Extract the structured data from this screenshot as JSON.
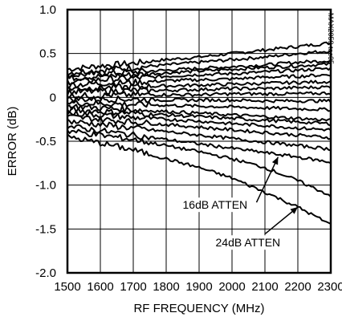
{
  "chart_data": {
    "type": "line",
    "xlabel": "RF FREQUENCY (MHz)",
    "ylabel": "ERROR (dB)",
    "xlim": [
      1500,
      2300
    ],
    "ylim": [
      -2.0,
      1.0
    ],
    "x_ticks": [
      "1500",
      "1600",
      "1700",
      "1800",
      "1900",
      "2000",
      "2100",
      "2200",
      "2300"
    ],
    "y_ticks": [
      "1.0",
      "0.5",
      "0",
      "-0.5",
      "-1.0",
      "-1.5",
      "-2.0"
    ],
    "grid": true,
    "figure_id": "MAX2059 toc05",
    "x": [
      1500,
      1600,
      1700,
      1800,
      1900,
      2000,
      2100,
      2200,
      2300
    ],
    "series": [
      {
        "values": [
          0.32,
          0.36,
          0.39,
          0.43,
          0.46,
          0.5,
          0.54,
          0.58,
          0.62
        ]
      },
      {
        "values": [
          0.28,
          0.31,
          0.34,
          0.37,
          0.4,
          0.43,
          0.46,
          0.5,
          0.53
        ]
      },
      {
        "values": [
          0.25,
          0.27,
          0.29,
          0.31,
          0.33,
          0.35,
          0.37,
          0.4,
          0.42
        ]
      },
      {
        "values": [
          0.22,
          0.24,
          0.26,
          0.28,
          0.3,
          0.32,
          0.34,
          0.36,
          0.38
        ]
      },
      {
        "values": [
          0.18,
          0.2,
          0.22,
          0.24,
          0.26,
          0.27,
          0.29,
          0.31,
          0.33
        ]
      },
      {
        "values": [
          0.14,
          0.16,
          0.17,
          0.19,
          0.2,
          0.21,
          0.23,
          0.24,
          0.26
        ]
      },
      {
        "values": [
          0.1,
          0.11,
          0.12,
          0.13,
          0.14,
          0.15,
          0.16,
          0.17,
          0.18
        ]
      },
      {
        "values": [
          0.06,
          0.07,
          0.08,
          0.08,
          0.09,
          0.1,
          0.1,
          0.11,
          0.12
        ]
      },
      {
        "values": [
          0.02,
          0.02,
          0.03,
          0.03,
          0.03,
          0.04,
          0.04,
          0.04,
          0.05
        ]
      },
      {
        "values": [
          -0.02,
          -0.02,
          -0.02,
          -0.03,
          -0.03,
          -0.03,
          -0.04,
          -0.04,
          -0.04
        ]
      },
      {
        "values": [
          -0.06,
          -0.07,
          -0.08,
          -0.09,
          -0.1,
          -0.11,
          -0.12,
          -0.13,
          -0.14
        ]
      },
      {
        "values": [
          -0.1,
          -0.12,
          -0.14,
          -0.16,
          -0.18,
          -0.2,
          -0.22,
          -0.24,
          -0.26
        ]
      },
      {
        "values": [
          -0.14,
          -0.16,
          -0.18,
          -0.2,
          -0.22,
          -0.24,
          -0.26,
          -0.28,
          -0.3
        ]
      },
      {
        "values": [
          -0.18,
          -0.2,
          -0.23,
          -0.25,
          -0.27,
          -0.3,
          -0.32,
          -0.35,
          -0.37
        ]
      },
      {
        "values": [
          -0.22,
          -0.25,
          -0.28,
          -0.31,
          -0.34,
          -0.37,
          -0.4,
          -0.43,
          -0.46
        ]
      },
      {
        "values": [
          -0.27,
          -0.31,
          -0.35,
          -0.39,
          -0.43,
          -0.47,
          -0.51,
          -0.55,
          -0.59
        ]
      },
      {
        "values": [
          -0.33,
          -0.38,
          -0.43,
          -0.48,
          -0.53,
          -0.58,
          -0.63,
          -0.68,
          -0.74
        ]
      },
      {
        "values": [
          -0.38,
          -0.43,
          -0.48,
          -0.55,
          -0.62,
          -0.7,
          -0.8,
          -0.95,
          -1.12
        ]
      },
      {
        "values": [
          -0.45,
          -0.52,
          -0.6,
          -0.7,
          -0.8,
          -0.92,
          -1.08,
          -1.25,
          -1.45
        ]
      }
    ],
    "annotations": [
      {
        "text": "16dB ATTEN",
        "points_to": [
          2140,
          -0.68
        ]
      },
      {
        "text": "24dB ATTEN",
        "points_to": [
          2200,
          -1.25
        ]
      }
    ]
  }
}
